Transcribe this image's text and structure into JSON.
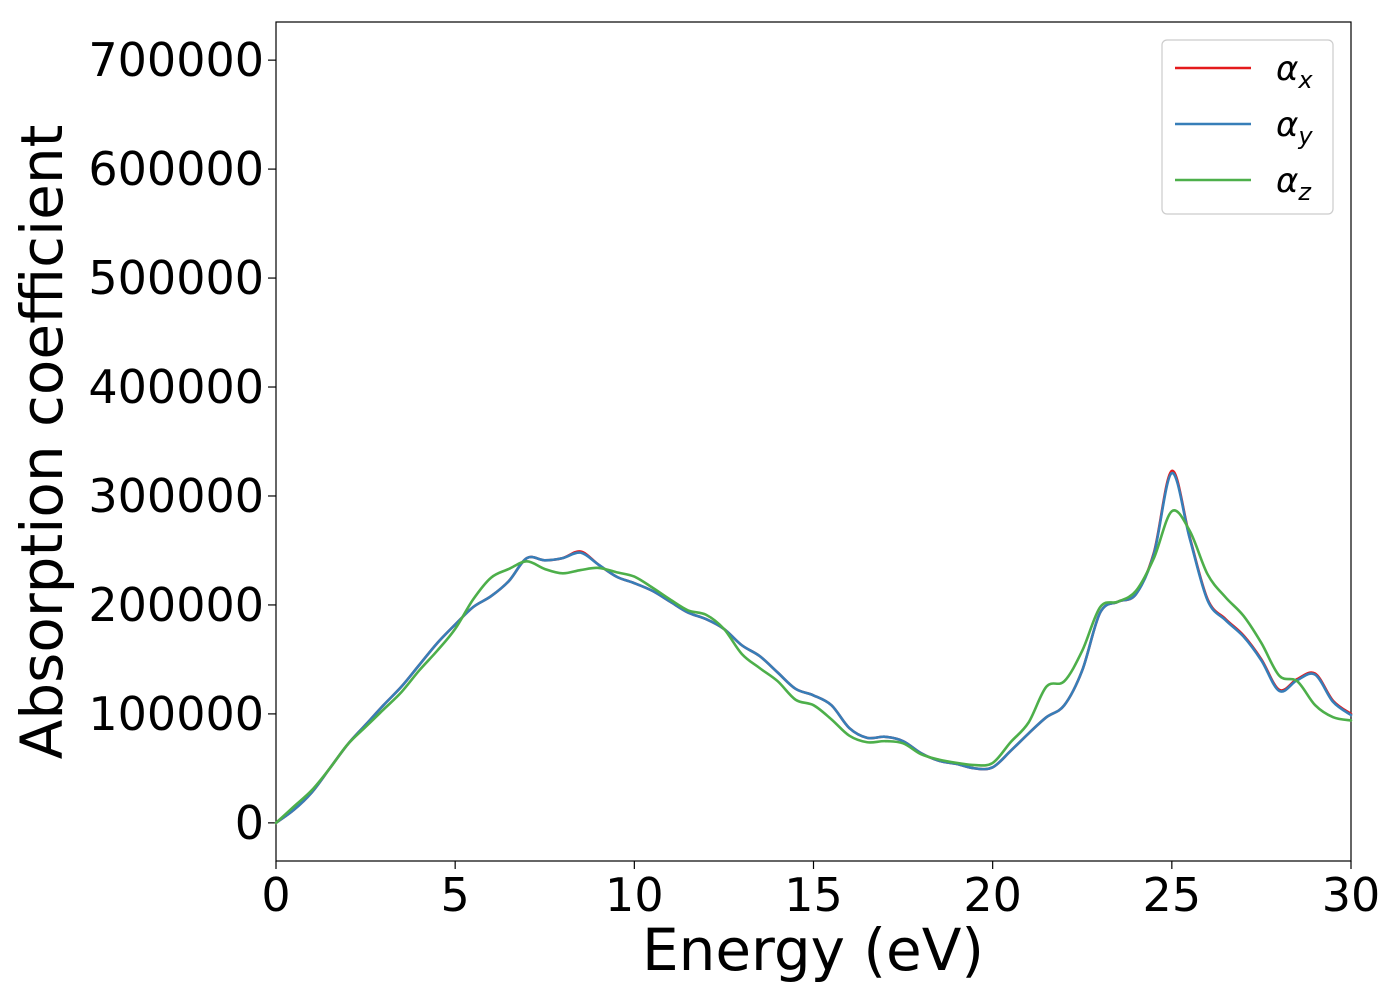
{
  "chart_data": {
    "type": "line",
    "xlabel": "Energy (eV)",
    "ylabel": "Absorption coefficient",
    "xlim": [
      0,
      30
    ],
    "ylim": [
      -35000,
      735000
    ],
    "xticks": [
      0,
      5,
      10,
      15,
      20,
      25,
      30
    ],
    "yticks": [
      0,
      100000,
      200000,
      300000,
      400000,
      500000,
      600000,
      700000
    ],
    "grid": false,
    "legend_position": "top-right",
    "x": [
      0,
      0.5,
      1,
      1.5,
      2,
      2.5,
      3,
      3.5,
      4,
      4.5,
      5,
      5.5,
      6,
      6.5,
      7,
      7.5,
      8,
      8.5,
      9,
      9.5,
      10,
      10.5,
      11,
      11.5,
      12,
      12.5,
      13,
      13.5,
      14,
      14.5,
      15,
      15.5,
      16,
      16.5,
      17,
      17.5,
      18,
      18.5,
      19,
      19.5,
      20,
      20.5,
      21,
      21.5,
      22,
      22.5,
      23,
      23.5,
      24,
      24.5,
      25,
      25.5,
      26,
      26.5,
      27,
      27.5,
      28,
      28.5,
      29,
      29.5,
      30
    ],
    "series": [
      {
        "name": "αx",
        "legend_symbol": "α",
        "legend_subscript": "x",
        "color": "#e41a1c",
        "values": [
          0,
          12000,
          28000,
          50000,
          72000,
          90000,
          108000,
          125000,
          145000,
          165000,
          182000,
          198000,
          208000,
          222000,
          243000,
          241000,
          243000,
          249000,
          237000,
          226000,
          220000,
          213000,
          203000,
          193000,
          187000,
          178000,
          163000,
          153000,
          138000,
          123000,
          117000,
          108000,
          87000,
          78000,
          79000,
          75000,
          64000,
          57000,
          54000,
          50000,
          51000,
          66000,
          82000,
          97000,
          108000,
          140000,
          193000,
          203000,
          210000,
          248000,
          323000,
          262000,
          205000,
          187000,
          172000,
          150000,
          122000,
          132000,
          137000,
          112000,
          100000
        ]
      },
      {
        "name": "αy",
        "legend_symbol": "α",
        "legend_subscript": "y",
        "color": "#377eb8",
        "values": [
          0,
          12000,
          28000,
          50000,
          72000,
          90000,
          108000,
          125000,
          145000,
          165000,
          182000,
          198000,
          208000,
          222000,
          243000,
          241000,
          243000,
          248000,
          237000,
          226000,
          220000,
          213000,
          203000,
          193000,
          187000,
          178000,
          163000,
          153000,
          138000,
          123000,
          117000,
          108000,
          87000,
          78000,
          79000,
          75000,
          64000,
          57000,
          54000,
          50000,
          51000,
          66000,
          82000,
          97000,
          108000,
          140000,
          193000,
          203000,
          210000,
          247000,
          321000,
          261000,
          204000,
          186000,
          171000,
          149000,
          121000,
          131000,
          136000,
          111000,
          99000
        ]
      },
      {
        "name": "αz",
        "legend_symbol": "α",
        "legend_subscript": "z",
        "color": "#4daf4a",
        "values": [
          0,
          15000,
          30000,
          50000,
          72000,
          88000,
          104000,
          120000,
          140000,
          158000,
          178000,
          205000,
          225000,
          233000,
          240000,
          233000,
          229000,
          232000,
          234000,
          230000,
          226000,
          216000,
          205000,
          195000,
          191000,
          178000,
          155000,
          142000,
          130000,
          113000,
          108000,
          95000,
          80000,
          74000,
          75000,
          73000,
          63000,
          58000,
          55000,
          53000,
          55000,
          74000,
          92000,
          125000,
          130000,
          158000,
          198000,
          203000,
          213000,
          243000,
          286000,
          268000,
          228000,
          207000,
          190000,
          165000,
          135000,
          130000,
          108000,
          97000,
          94000
        ]
      }
    ]
  }
}
